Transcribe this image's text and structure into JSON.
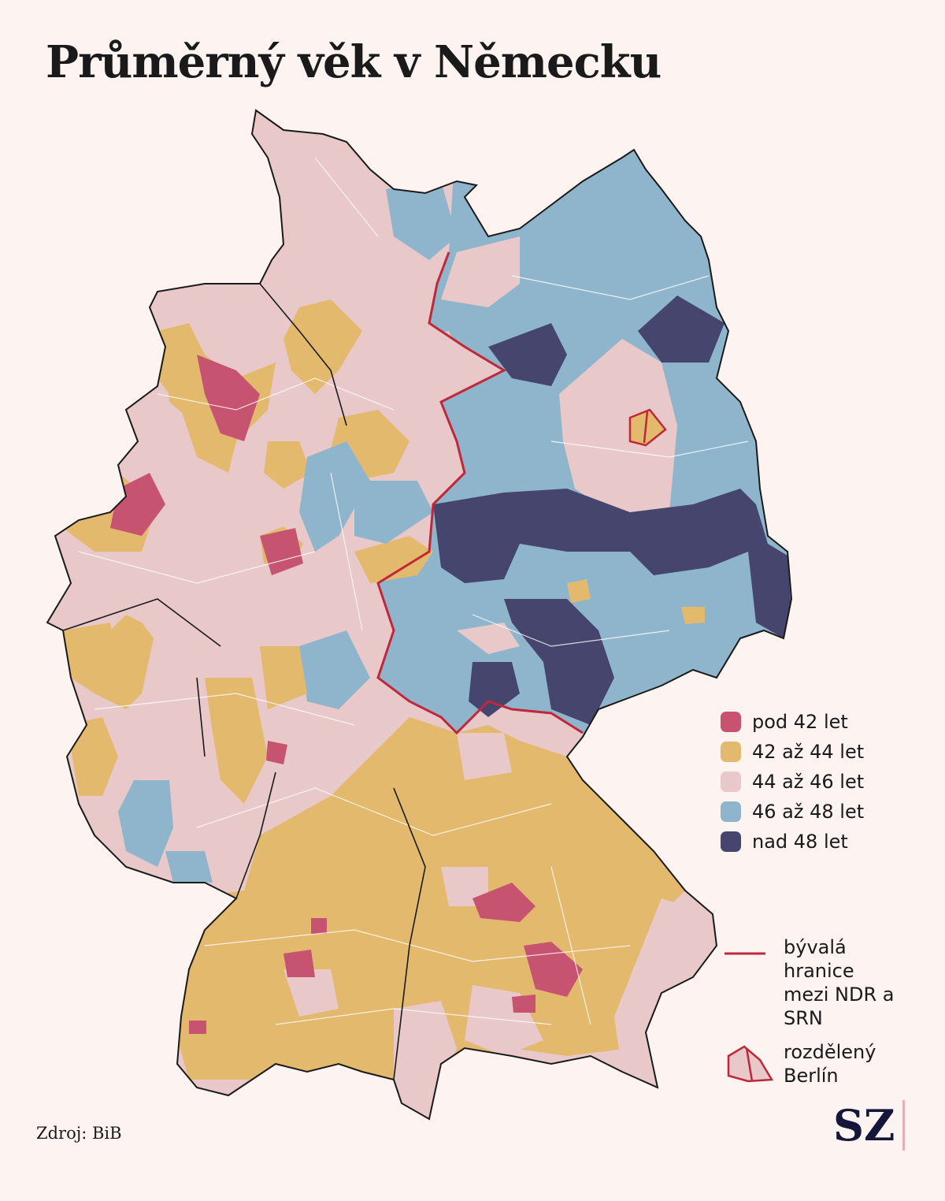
{
  "title": "Průměrný věk v Německu",
  "legend": [
    {
      "label": "pod 42 let",
      "color": "#c65470"
    },
    {
      "label": "42 až 44 let",
      "color": "#e3b96e"
    },
    {
      "label": "44 až 46 let",
      "color": "#e8c8c8"
    },
    {
      "label": "46 až 48 let",
      "color": "#8fb5cc"
    },
    {
      "label": "nad 48 let",
      "color": "#45456e"
    }
  ],
  "border_legend": "bývalá hranice mezi NDR a SRN",
  "berlin_legend": "rozdělený Berlín",
  "border_color": "#c0283a",
  "source": "Zdroj: BiB",
  "logo": "SZ"
}
